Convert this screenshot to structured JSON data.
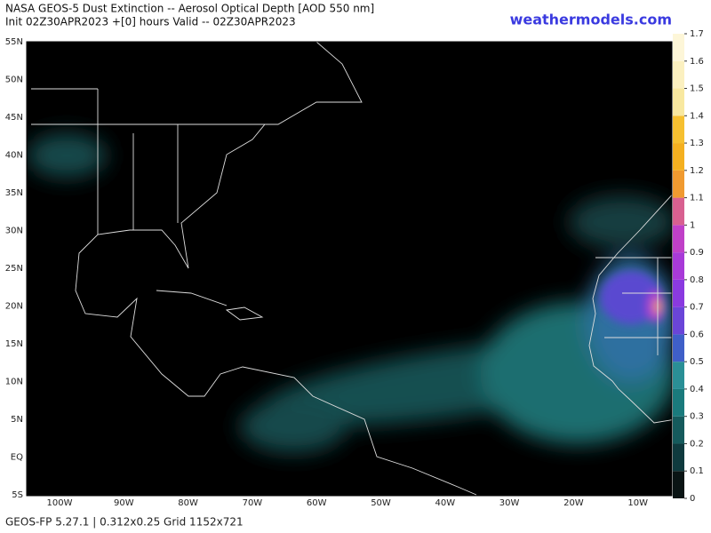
{
  "header": {
    "title": "NASA GEOS-5 Dust Extinction -- Aerosol Optical Depth [AOD 550 nm]",
    "subtitle": "Init 02Z30APR2023 +[0] hours Valid -- 02Z30APR2023",
    "site": "weathermodels.com"
  },
  "map": {
    "lat_labels": [
      "55N",
      "50N",
      "45N",
      "40N",
      "35N",
      "30N",
      "25N",
      "20N",
      "15N",
      "10N",
      "5N",
      "EQ",
      "5S"
    ],
    "lon_labels": [
      "100W",
      "90W",
      "80W",
      "70W",
      "60W",
      "50W",
      "40W",
      "30W",
      "20W",
      "10W"
    ]
  },
  "colorbar": {
    "ticks": [
      0,
      0.1,
      0.2,
      0.3,
      0.4,
      0.5,
      0.6,
      0.7,
      0.8,
      0.9,
      1,
      1.1,
      1.2,
      1.3,
      1.4,
      1.5,
      1.6,
      1.7
    ],
    "colors": [
      "#0a1414",
      "#0f3a3e",
      "#155a5c",
      "#1a7a7c",
      "#2a8f96",
      "#3f5fc8",
      "#6a45d8",
      "#8a3ae0",
      "#a83ad8",
      "#c040c8",
      "#d86090",
      "#f09a30",
      "#f4b020",
      "#f6c030",
      "#f8e8a0",
      "#fbf0c0",
      "#fdf6d8"
    ]
  },
  "footer": "GEOS-FP 5.27.1 | 0.312x0.25 Grid 1152x721"
}
